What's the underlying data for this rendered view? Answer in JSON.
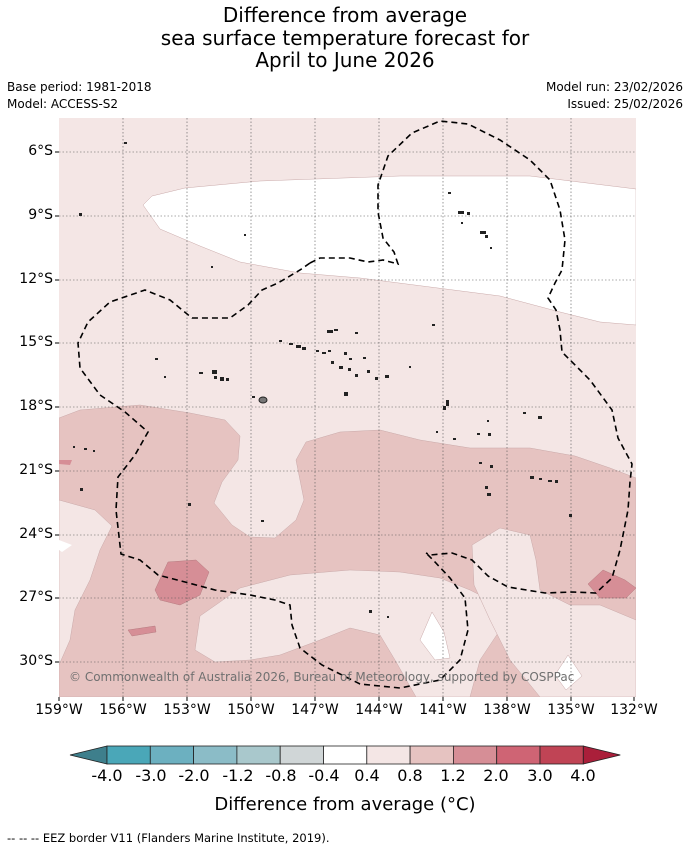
{
  "title": {
    "line1": "Difference from average",
    "line2": "sea surface temperature forecast for",
    "line3": "April to June 2026"
  },
  "meta": {
    "base_period": "Base period: 1981-2018",
    "model": "Model: ACCESS-S2",
    "model_run": "Model run: 23/02/2026",
    "issued": "Issued: 25/02/2026"
  },
  "map": {
    "lat_labels": [
      "6°S",
      "9°S",
      "12°S",
      "15°S",
      "18°S",
      "21°S",
      "24°S",
      "27°S",
      "30°S"
    ],
    "lon_labels": [
      "159°W",
      "156°W",
      "153°W",
      "150°W",
      "147°W",
      "144°W",
      "141°W",
      "138°W",
      "135°W",
      "132°W"
    ],
    "copyright": "© Commonwealth of Australia 2026, Bureau of Meteorology, supported by COSPPac"
  },
  "colorbar": {
    "labels": [
      "-4.0",
      "-3.0",
      "-2.0",
      "-1.2",
      "-0.8",
      "-0.4",
      "0.4",
      "0.8",
      "1.2",
      "2.0",
      "3.0",
      "4.0"
    ],
    "colors": [
      "#3e7f8c",
      "#4aa7b8",
      "#6cb0c0",
      "#8bbcc7",
      "#a9c8cc",
      "#d0d6d7",
      "#ffffff",
      "#f4e6e5",
      "#e6c3c1",
      "#d68e96",
      "#cf6474",
      "#c04455",
      "#aa1f3a"
    ],
    "title": "Difference from average (°C)"
  },
  "footnote": "--  --  -- EEZ border V11 (Flanders Marine Institute, 2019)."
}
